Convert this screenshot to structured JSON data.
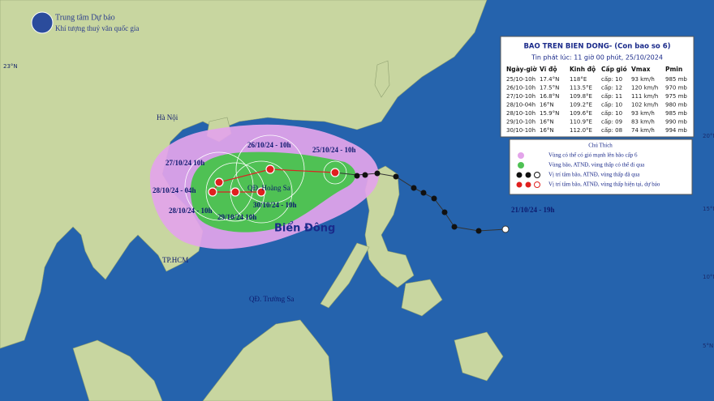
{
  "header": {
    "org": "Trung tâm Dự báo",
    "sub": "Khí tượng thuỷ văn quốc gia"
  },
  "info_box": {
    "title": "BAO TREN BIEN DONG- (Con bao so 6)",
    "issued": "Tin phát lúc: 11 giờ 00 phút, 25/10/2024",
    "columns": [
      "Ngày-giờ",
      "Vĩ độ",
      "Kinh độ",
      "Cấp gió",
      "Vmax",
      "Pmin"
    ],
    "rows": [
      [
        "25/10-10h",
        "17.4°N",
        "118°E",
        "cấp: 10",
        "93 km/h",
        "985 mb"
      ],
      [
        "26/10-10h",
        "17.5°N",
        "113.5°E",
        "cấp: 12",
        "120 km/h",
        "970 mb"
      ],
      [
        "27/10-10h",
        "16.8°N",
        "109.8°E",
        "cấp: 11",
        "111 km/h",
        "975 mb"
      ],
      [
        "28/10-04h",
        "16°N",
        "109.2°E",
        "cấp: 10",
        "102 km/h",
        "980 mb"
      ],
      [
        "28/10-10h",
        "15.9°N",
        "109.6°E",
        "cấp: 10",
        "93 km/h",
        "985 mb"
      ],
      [
        "29/10-10h",
        "16°N",
        "110.9°E",
        "cấp: 09",
        "83 km/h",
        "990 mb"
      ],
      [
        "30/10-10h",
        "16°N",
        "112.0°E",
        "cấp: 08",
        "74 km/h",
        "994 mb"
      ]
    ]
  },
  "legend": {
    "title": "Chú Thích",
    "items": [
      "Vùng có thể có gió mạnh lên bão cấp 6",
      "Vùng bão, ATNĐ, vùng thấp có thể đi qua",
      "Vị trí tâm bão, ATNĐ, vùng thấp đã qua",
      "Vị trí tâm bão, ATNĐ, vùng thấp hiện tại, dự báo"
    ]
  },
  "places": [
    "Hà Nội",
    "TP.HCM",
    "QĐ. Hoàng Sa",
    "QĐ. Trường Sa",
    "Biển Đông"
  ],
  "track_labels": [
    "21/10/24 - 19h",
    "25/10/24 - 10h",
    "26/10/24 - 10h",
    "27/10/24   10h",
    "28/10/24 - 04h",
    "28/10/24 - 10h",
    "29/10/24   10h",
    "30/10/24 - 10h"
  ],
  "lat_labels": [
    "23°N",
    "20°N",
    "15°N",
    "10°N",
    "5°N"
  ]
}
